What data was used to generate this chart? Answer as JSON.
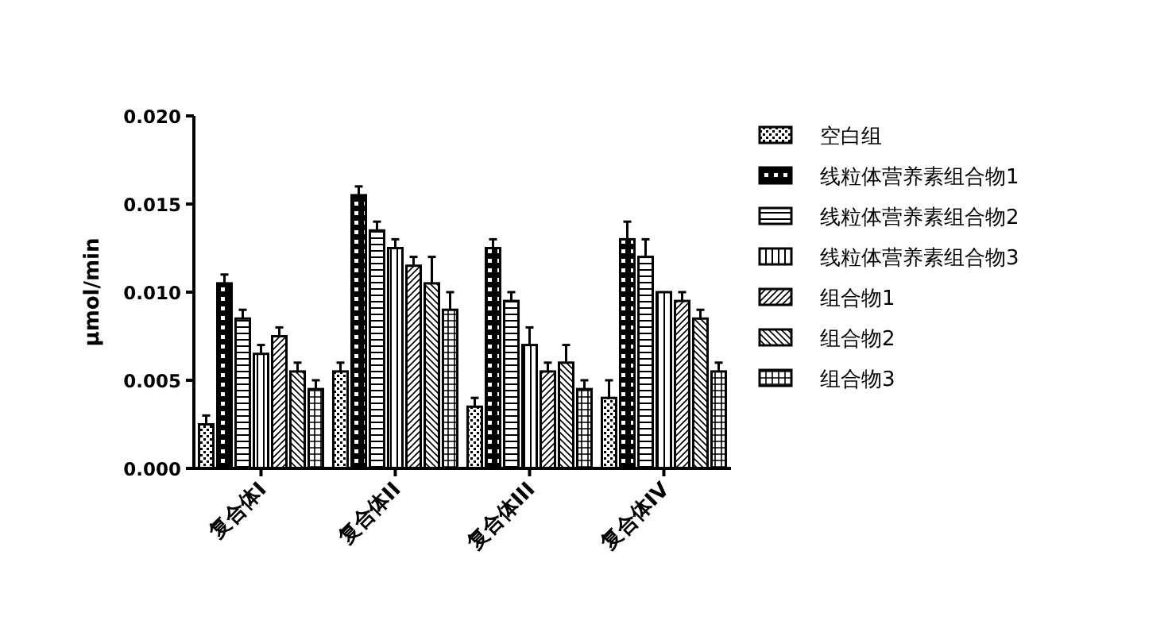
{
  "chart_data": {
    "type": "bar",
    "ylabel": "μmol/min",
    "categories": [
      "复合体I",
      "复合体II",
      "复合体III",
      "复合体IV"
    ],
    "ylim": [
      0,
      0.02
    ],
    "yticks": [
      {
        "value": 0,
        "label": "0.000"
      },
      {
        "value": 0.005,
        "label": "0.005"
      },
      {
        "value": 0.01,
        "label": "0.010"
      },
      {
        "value": 0.015,
        "label": "0.015"
      },
      {
        "value": 0.02,
        "label": "0.020"
      }
    ],
    "grid": false,
    "legend": "right",
    "series": [
      {
        "name": "空白组",
        "color": "#000000",
        "values": [
          0.0025,
          0.0055,
          0.0035,
          0.004
        ],
        "errors": [
          0.0005,
          0.0005,
          0.0005,
          0.001
        ]
      },
      {
        "name": "线粒体营养素组合物1",
        "color": "#000000",
        "values": [
          0.0105,
          0.0155,
          0.0125,
          0.013
        ],
        "errors": [
          0.0005,
          0.0005,
          0.0005,
          0.001
        ]
      },
      {
        "name": "线粒体营养素组合物2",
        "color": "#000000",
        "values": [
          0.0085,
          0.0135,
          0.0095,
          0.012
        ],
        "errors": [
          0.0005,
          0.0005,
          0.0005,
          0.001
        ]
      },
      {
        "name": "线粒体营养素组合物3",
        "color": "#000000",
        "values": [
          0.0065,
          0.0125,
          0.007,
          0.01
        ],
        "errors": [
          0.0005,
          0.0005,
          0.001,
          null
        ]
      },
      {
        "name": "组合物1",
        "color": "#000000",
        "values": [
          0.0075,
          0.0115,
          0.0055,
          0.0095
        ],
        "errors": [
          0.0005,
          0.0005,
          0.0005,
          0.0005
        ]
      },
      {
        "name": "组合物2",
        "color": "#000000",
        "values": [
          0.0055,
          0.0105,
          0.006,
          0.0085
        ],
        "errors": [
          0.0005,
          0.0015,
          0.001,
          0.0005
        ]
      },
      {
        "name": "组合物3",
        "color": "#000000",
        "values": [
          0.0045,
          0.009,
          0.0045,
          0.0055
        ],
        "errors": [
          0.0005,
          0.001,
          0.0005,
          0.0005
        ]
      }
    ]
  }
}
